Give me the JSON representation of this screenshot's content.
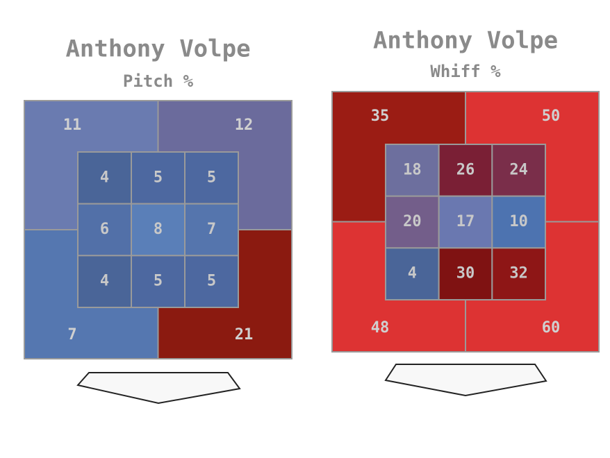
{
  "chart_data": [
    {
      "type": "heatmap",
      "title": "Anthony Volpe",
      "subtitle": "Pitch %",
      "outer": {
        "values": [
          11,
          12,
          7,
          21
        ],
        "colors": [
          "#6a7bb0",
          "#6b6b9c",
          "#5577b0",
          "#8b1a10"
        ]
      },
      "inner": {
        "values": [
          [
            4,
            5,
            5
          ],
          [
            6,
            8,
            7
          ],
          [
            4,
            5,
            5
          ]
        ],
        "colors": [
          [
            "#4a6598",
            "#4d68a0",
            "#4d68a0"
          ],
          [
            "#5270a8",
            "#5a7fb8",
            "#5575ad"
          ],
          [
            "#4a6598",
            "#4d68a0",
            "#4d68a0"
          ]
        ]
      }
    },
    {
      "type": "heatmap",
      "title": "Anthony Volpe",
      "subtitle": "Whiff %",
      "outer": {
        "values": [
          35,
          50,
          48,
          60
        ],
        "colors": [
          "#9b1c14",
          "#dd3333",
          "#dd3333",
          "#dd3333"
        ]
      },
      "inner": {
        "values": [
          [
            18,
            26,
            24
          ],
          [
            20,
            17,
            10
          ],
          [
            4,
            30,
            32
          ]
        ],
        "colors": [
          [
            "#6d6f9e",
            "#7a1f35",
            "#7a2e4a"
          ],
          [
            "#735e8a",
            "#6a78b0",
            "#4d73b0"
          ],
          [
            "#4a6598",
            "#7f1212",
            "#8e1616"
          ]
        ]
      }
    }
  ]
}
